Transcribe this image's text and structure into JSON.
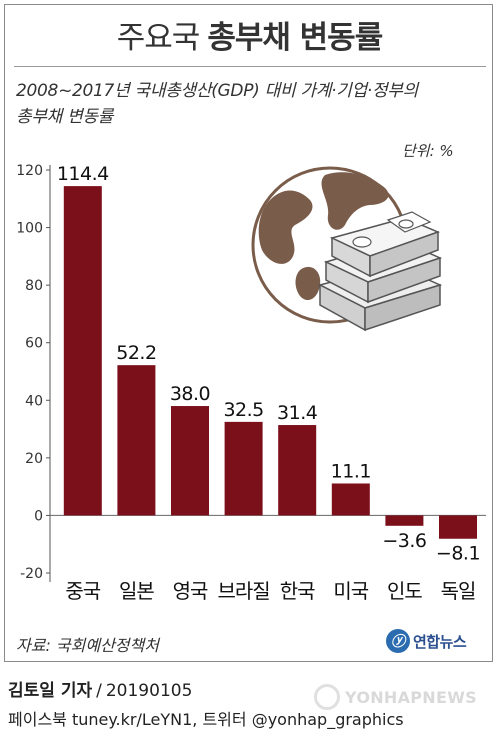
{
  "header": {
    "title_light": "주요국",
    "title_bold": "총부채 변동률",
    "subtitle_line1": "2008~2017년 국내총생산(GDP) 대비 가계·기업·정부의",
    "subtitle_line2": "총부채 변동률",
    "unit": "단위: %"
  },
  "chart_data": {
    "type": "bar",
    "title": "주요국 총부채 변동률",
    "categories": [
      "중국",
      "일본",
      "영국",
      "브라질",
      "한국",
      "미국",
      "인도",
      "독일"
    ],
    "values": [
      114.4,
      52.2,
      38.0,
      32.5,
      31.4,
      11.1,
      -3.6,
      -8.1
    ],
    "value_labels": [
      "114.4",
      "52.2",
      "38.0",
      "32.5",
      "31.4",
      "11.1",
      "−3.6",
      "−8.1"
    ],
    "yticks": [
      "120",
      "100",
      "80",
      "60",
      "40",
      "20",
      "0",
      "-20"
    ],
    "ylim": [
      -20,
      120
    ],
    "ylabel": "",
    "xlabel": "",
    "bar_color": "#7b0f1a",
    "grid": false,
    "legend": "none"
  },
  "illustration": {
    "icon": "globe-and-money-stack-icon"
  },
  "footer": {
    "source": "자료: 국회예산정책처",
    "logo_mark": "ⓨ",
    "logo_text": "연합뉴스",
    "reporter": "김토일 기자",
    "date": "20190105",
    "separator": "/",
    "social": "페이스북 tuney.kr/LeYN1, 트위터 @yonhap_graphics",
    "watermark": "YONHAPNEWS"
  }
}
